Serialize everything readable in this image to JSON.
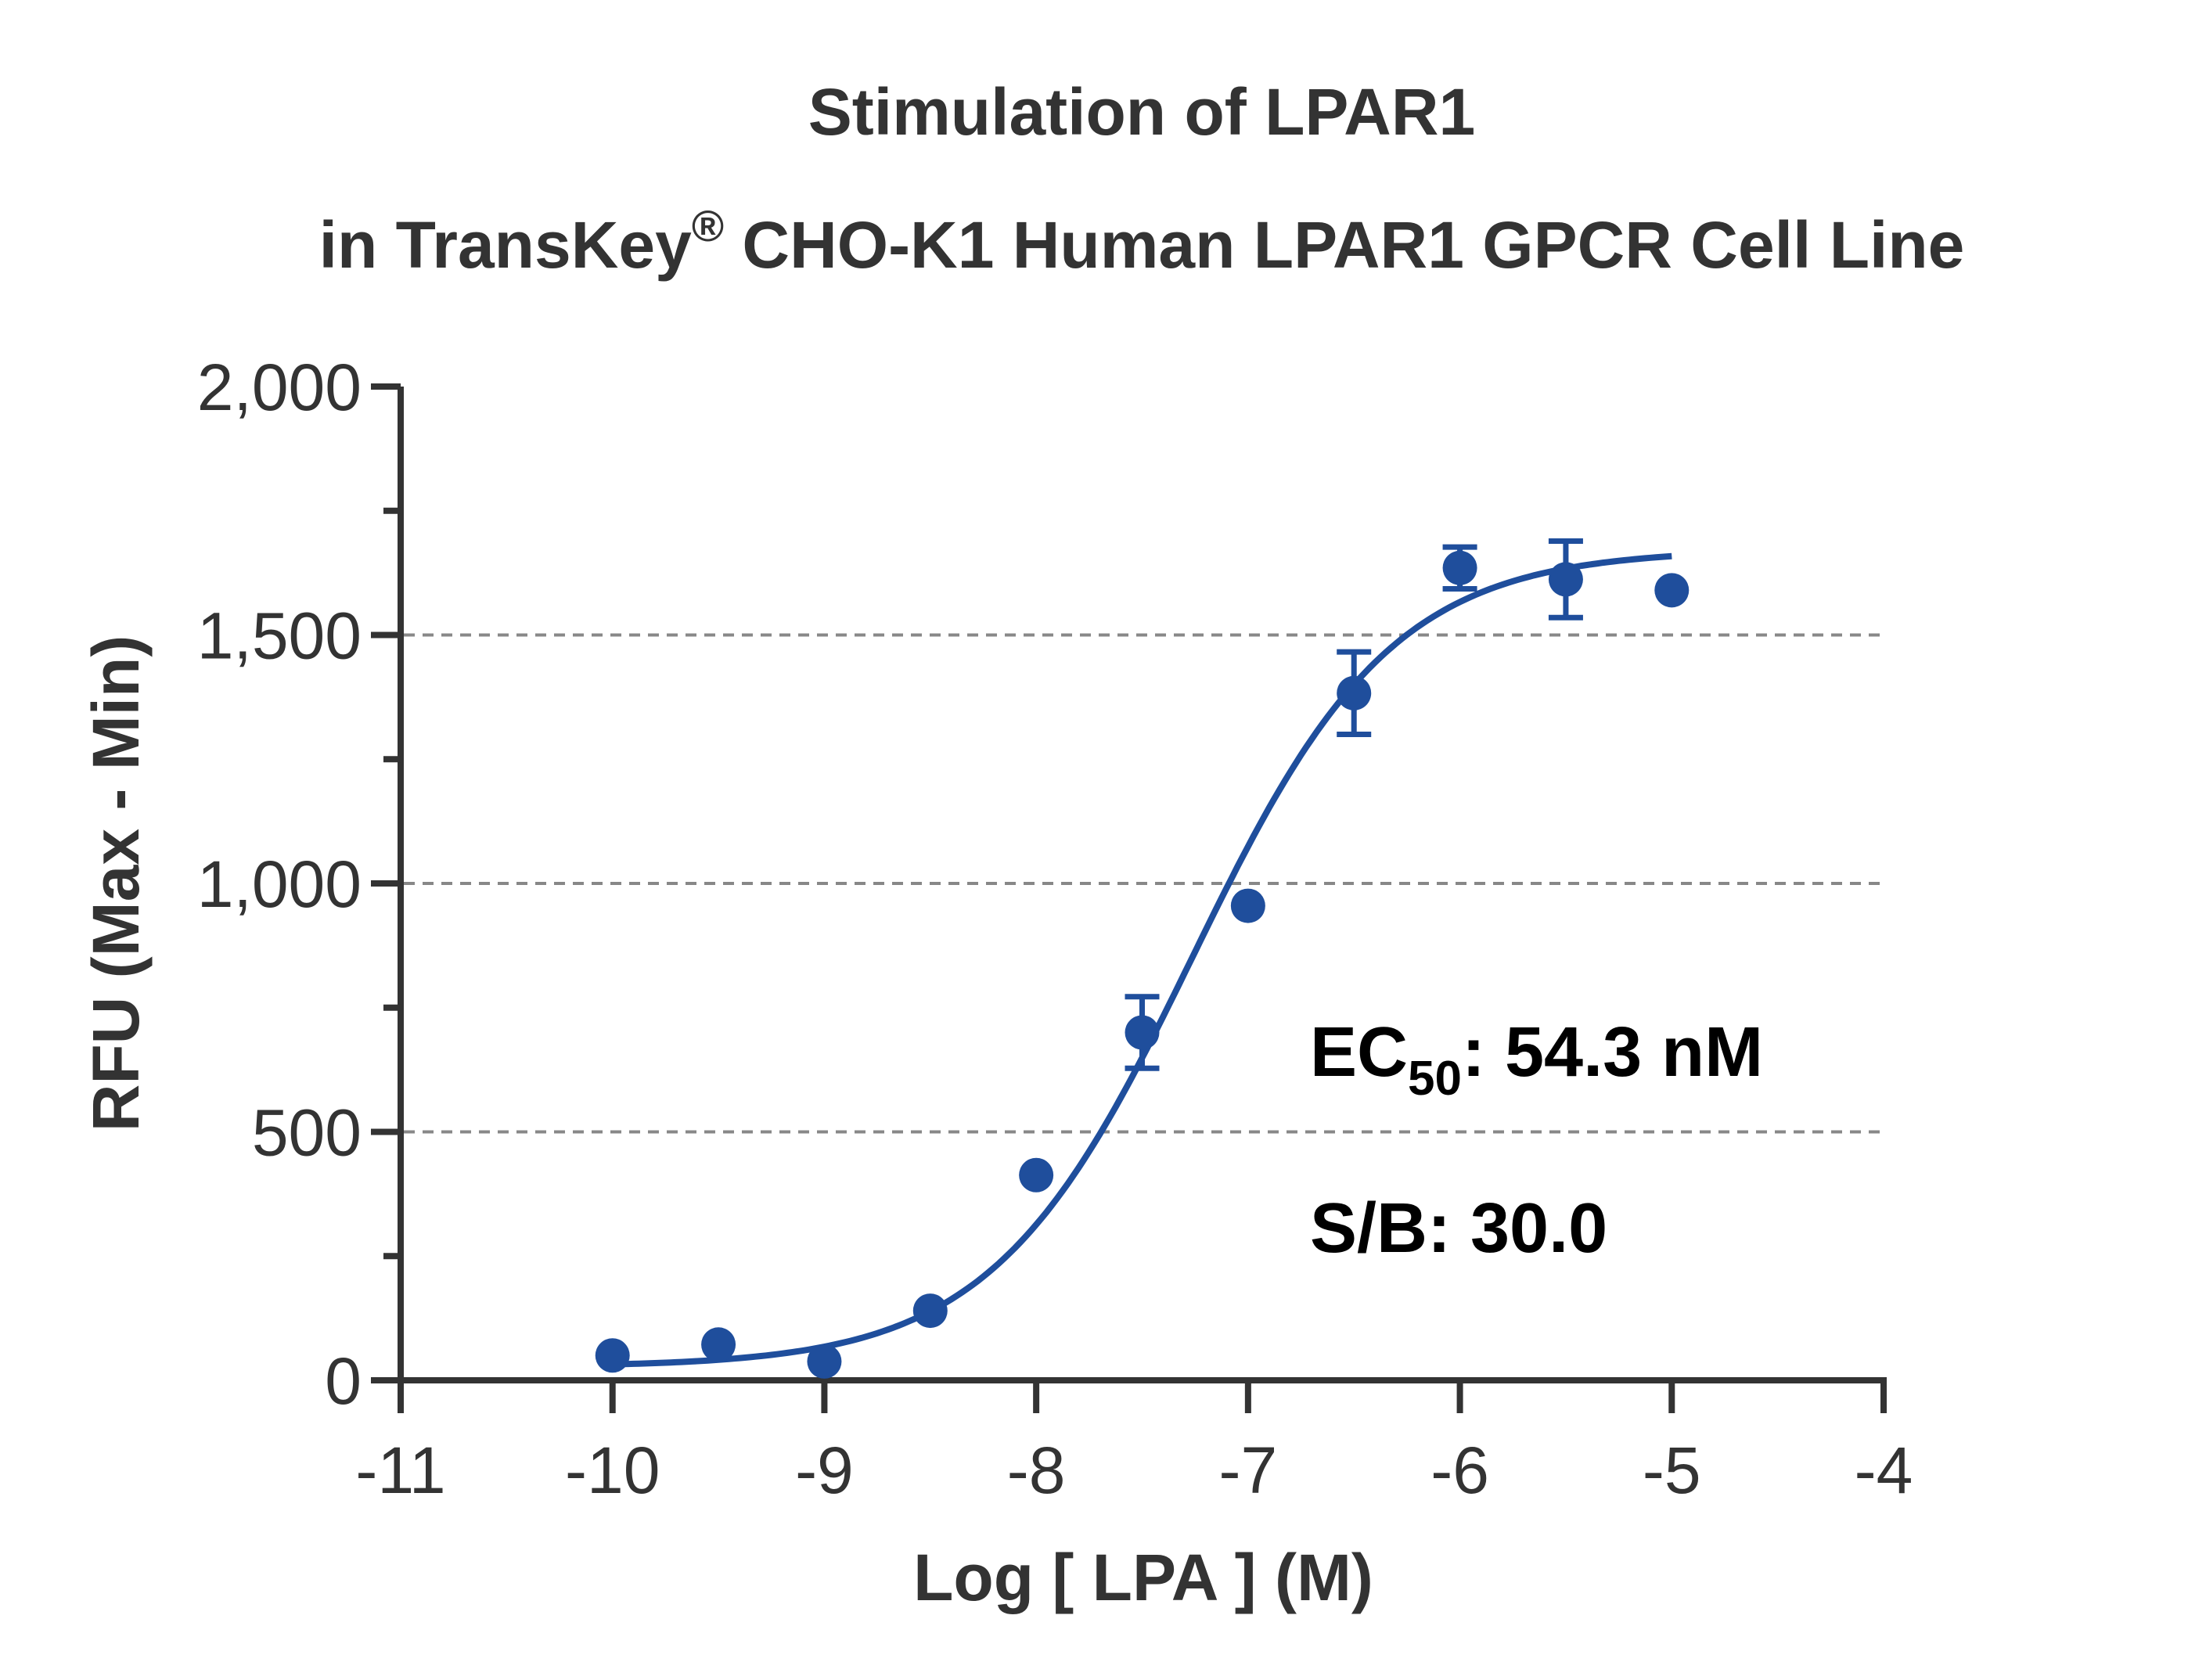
{
  "chart_data": {
    "type": "scatter",
    "title_line1": "Stimulation of  LPAR1",
    "title_line2_pre": "in TransKey",
    "title_line2_sup": "®",
    "title_line2_post": " CHO-K1 Human LPAR1  GPCR Cell Line",
    "xlabel": "Log [ LPA ]  (M)",
    "ylabel": "RFU (Max - Min)",
    "xlim": [
      -11,
      -4
    ],
    "ylim": [
      0,
      2000
    ],
    "x_ticks": [
      -11,
      -10,
      -9,
      -8,
      -7,
      -6,
      -5,
      -4
    ],
    "x_tick_labels": [
      "-11",
      "-10",
      "-9",
      "-8",
      "-7",
      "-6",
      "-5",
      "-4"
    ],
    "y_ticks": [
      0,
      500,
      1000,
      1500,
      2000
    ],
    "y_tick_labels": [
      "0",
      "500",
      "1,000",
      "1,500",
      "2,000"
    ],
    "y_minor_ticks": [
      250,
      750,
      1250,
      1750
    ],
    "grid": "horizontal dashed at 500, 1,000, 1,500",
    "color": "#1f4e9c",
    "series": [
      {
        "points": [
          {
            "x": -10,
            "y": 50,
            "err": 0
          },
          {
            "x": -9.5,
            "y": 72,
            "err": 0
          },
          {
            "x": -9,
            "y": 38,
            "err": 0
          },
          {
            "x": -8.5,
            "y": 140,
            "err": 0
          },
          {
            "x": -8,
            "y": 413,
            "err": 0
          },
          {
            "x": -7.5,
            "y": 700,
            "err": 72
          },
          {
            "x": -7,
            "y": 955,
            "err": 0
          },
          {
            "x": -6.5,
            "y": 1383,
            "err": 83
          },
          {
            "x": -6,
            "y": 1635,
            "err": 42
          },
          {
            "x": -5.5,
            "y": 1612,
            "err": 77
          },
          {
            "x": -5,
            "y": 1590,
            "err": 0
          }
        ],
        "fit": {
          "model": "4PL",
          "bottom": 27,
          "top": 1672,
          "logEC50": -7.265,
          "hill": 0.92,
          "x_range": [
            -10,
            -5
          ]
        }
      }
    ],
    "annotations": {
      "ec50_prefix": "EC",
      "ec50_sub": "50",
      "ec50_value": ": 54.3 nM",
      "sb": "S/B: 30.0"
    }
  }
}
